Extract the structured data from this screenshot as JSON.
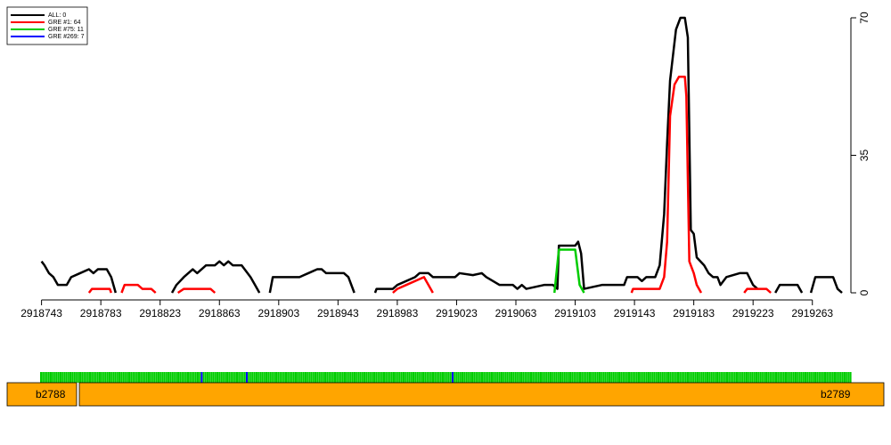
{
  "chart_data": {
    "type": "line",
    "xlim": [
      2918727,
      2919289
    ],
    "ylim": [
      0,
      70
    ],
    "xticks": [
      2918743,
      2918783,
      2918823,
      2918863,
      2918903,
      2918943,
      2918983,
      2919023,
      2919063,
      2919103,
      2919143,
      2919183,
      2919223,
      2919263
    ],
    "yticks": [
      0,
      35,
      70
    ],
    "legend": "top-left",
    "series": [
      {
        "name": "ALL: 0",
        "color": "#000000",
        "x": [
          2918743,
          2918745,
          2918748,
          2918751,
          2918754,
          2918760,
          2918763,
          2918769,
          2918775,
          2918778,
          2918781,
          2918787,
          2918790,
          2918793,
          null,
          2918831,
          2918834,
          2918839,
          2918842,
          2918845,
          2918848,
          2918854,
          2918860,
          2918863,
          2918866,
          2918869,
          2918872,
          2918878,
          2918884,
          2918887,
          2918890,
          null,
          2918897,
          2918899,
          2918917,
          2918920,
          2918923,
          2918929,
          2918932,
          2918935,
          2918947,
          2918950,
          2918954,
          null,
          2918968,
          2918969,
          2918980,
          2918983,
          2918995,
          2918998,
          2919004,
          2919007,
          2919022,
          2919025,
          2919034,
          2919040,
          2919043,
          2919052,
          2919061,
          2919064,
          2919067,
          2919070,
          2919082,
          2919088,
          2919091,
          2919092,
          2919103,
          2919105,
          2919107,
          2919109,
          2919121,
          2919136,
          2919138,
          2919145,
          2919148,
          2919151,
          2919157,
          2919160,
          2919163,
          2919165,
          2919167,
          2919171,
          2919174,
          2919177,
          2919179,
          2919181,
          2919183,
          2919185,
          2919190,
          2919193,
          2919196,
          2919199,
          2919201,
          2919205,
          2919214,
          2919219,
          2919223,
          2919226,
          null,
          2919238,
          2919241,
          2919253,
          2919256,
          null,
          2919262,
          2919265,
          2919277,
          2919280,
          2919283
        ],
        "values": [
          8,
          7,
          5,
          4,
          2,
          2,
          4,
          5,
          6,
          5,
          6,
          6,
          4,
          0,
          null,
          0,
          2,
          4,
          5,
          6,
          5,
          7,
          7,
          8,
          7,
          8,
          7,
          7,
          4,
          2,
          0,
          null,
          0,
          4,
          4,
          4.5,
          5,
          6,
          6,
          5,
          5,
          4,
          0,
          null,
          0,
          1,
          1,
          2,
          4,
          5,
          5,
          4,
          4,
          5,
          4.5,
          5,
          4,
          2,
          2,
          1,
          2,
          1,
          2,
          2,
          1,
          12,
          12,
          13,
          10,
          1,
          2,
          2,
          4,
          4,
          3,
          4,
          4,
          7,
          20,
          38,
          54,
          67,
          70,
          70,
          65,
          16,
          15,
          9,
          7,
          5,
          4,
          4,
          2,
          4,
          5,
          5,
          2,
          1,
          null,
          0,
          2,
          2,
          0,
          null,
          0,
          4,
          4,
          1,
          0
        ]
      },
      {
        "name": "GRE #1: 64",
        "color": "#ff0000",
        "x": [
          2918775,
          2918777,
          2918789,
          2918790,
          null,
          2918797,
          2918799,
          2918808,
          2918811,
          2918817,
          2918820,
          null,
          2918835,
          2918839,
          2918857,
          2918860,
          null,
          2918980,
          2918983,
          2918989,
          2919001,
          2919004,
          2919007,
          null,
          2919141,
          2919142,
          2919160,
          2919163,
          2919165,
          2919167,
          2919170,
          2919173,
          2919177,
          2919178,
          2919180,
          2919183,
          2919185,
          2919188,
          null,
          2919217,
          2919219,
          2919232,
          2919235
        ],
        "values": [
          0,
          1,
          1,
          0,
          null,
          0,
          2,
          2,
          1,
          1,
          0,
          null,
          0,
          1,
          1,
          0,
          null,
          0,
          1,
          2,
          4,
          2,
          0,
          null,
          0,
          1,
          1,
          4,
          13,
          45,
          53,
          55,
          55,
          50,
          8,
          5,
          2,
          0,
          null,
          0,
          1,
          1,
          0
        ]
      },
      {
        "name": "GRE #75: 11",
        "color": "#00cc00",
        "x": [
          2919089,
          2919092,
          2919103,
          2919106,
          2919109
        ],
        "values": [
          0,
          11,
          11,
          2,
          0
        ]
      },
      {
        "name": "GRE #269: 7",
        "color": "#0000ff",
        "x": [],
        "values": []
      }
    ],
    "genes": [
      "b2788",
      "b2789"
    ]
  }
}
